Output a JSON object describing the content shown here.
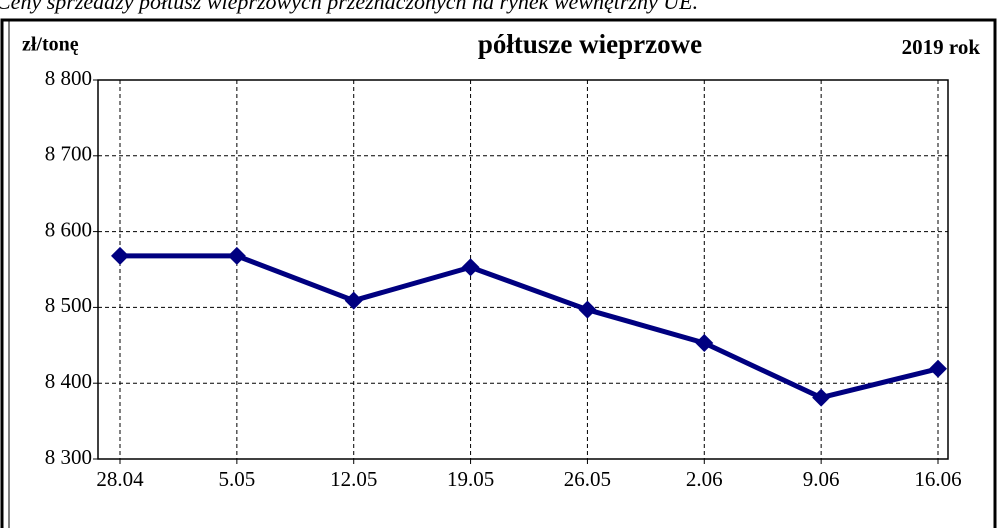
{
  "caption": "Ceny sprzedaży półtusz wieprzowych przeznaczonych na rynek wewnętrzny UE.",
  "chart_data": {
    "type": "line",
    "title": "półtusze wieprzowe",
    "y_label": "zł/tonę",
    "note": "2019 rok",
    "categories": [
      "28.04",
      "5.05",
      "12.05",
      "19.05",
      "26.05",
      "2.06",
      "9.06",
      "16.06"
    ],
    "series": [
      {
        "name": "półtusze wieprzowe",
        "color": "#000080",
        "values": [
          8568,
          8568,
          8509,
          8553,
          8497,
          8453,
          8381,
          8419
        ]
      }
    ],
    "ylim": [
      8300,
      8800
    ],
    "yticks": [
      {
        "value": 8300,
        "label": "8 300"
      },
      {
        "value": 8400,
        "label": "8 400"
      },
      {
        "value": 8500,
        "label": "8 500"
      },
      {
        "value": 8600,
        "label": "8 600"
      },
      {
        "value": 8700,
        "label": "8 700"
      },
      {
        "value": 8800,
        "label": "8 800"
      }
    ],
    "grid": true
  }
}
